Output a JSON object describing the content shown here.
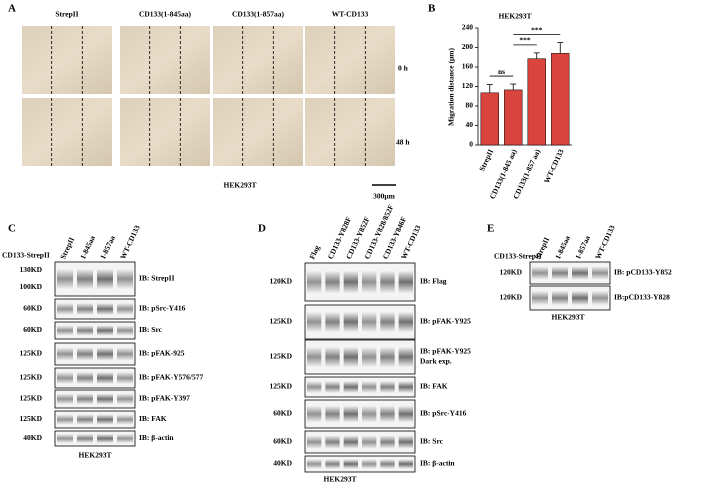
{
  "panels": {
    "a": {
      "label": "A",
      "columns": [
        "StrepII",
        "CD133(1-845aa)",
        "CD133(1-857aa)",
        "WT-CD133"
      ],
      "rows": [
        "0 h",
        "48 h"
      ],
      "cell_line": "HEK293T",
      "scale_bar": "300μm"
    },
    "c": {
      "label": "C",
      "construct": "CD133-StrepII",
      "lanes": [
        "StrepII",
        "1-845aa",
        "1-857aa",
        "WT-CD133"
      ],
      "blots": [
        {
          "markers": [
            "130KD",
            "100KD"
          ],
          "antibody": "IB: StrepII"
        },
        {
          "markers": [
            "60KD"
          ],
          "antibody": "IB: pSrc-Y416"
        },
        {
          "markers": [
            "60KD"
          ],
          "antibody": "IB: Src"
        },
        {
          "markers": [
            "125KD"
          ],
          "antibody": "IB: pFAK-925"
        },
        {
          "markers": [
            "125KD"
          ],
          "antibody": "IB: pFAK-Y576/577"
        },
        {
          "markers": [
            "125KD"
          ],
          "antibody": "IB: pFAK-Y397"
        },
        {
          "markers": [
            "125KD"
          ],
          "antibody": "IB: FAK"
        },
        {
          "markers": [
            "40KD"
          ],
          "antibody": "IB: β-actin"
        }
      ],
      "cell_line": "HEK293T"
    },
    "d": {
      "label": "D",
      "lanes": [
        "Flag",
        "CD133-Y828F",
        "CD133-Y852F",
        "CD133-Y828/852F",
        "CD133-Y846F",
        "WT-CD133"
      ],
      "blots": [
        {
          "markers": [
            "120KD"
          ],
          "antibody": "IB: Flag"
        },
        {
          "markers": [
            "125KD"
          ],
          "antibody": "IB: pFAK-Y925"
        },
        {
          "markers": [
            "125KD"
          ],
          "antibody": "IB: pFAK-Y925",
          "note": "Dark exp."
        },
        {
          "markers": [
            "125KD"
          ],
          "antibody": "IB: FAK"
        },
        {
          "markers": [
            "60KD"
          ],
          "antibody": "IB: pSrc-Y416"
        },
        {
          "markers": [
            "60KD"
          ],
          "antibody": "IB: Src"
        },
        {
          "markers": [
            "40KD"
          ],
          "antibody": "IB: β-actin"
        }
      ],
      "cell_line": "HEK293T"
    },
    "e": {
      "label": "E",
      "construct": "CD133-StrepII",
      "lanes": [
        "StrepII",
        "1-845aa",
        "1-857aa",
        "WT-CD133"
      ],
      "blots": [
        {
          "markers": [
            "120KD"
          ],
          "antibody": "IB: pCD133-Y852"
        },
        {
          "markers": [
            "120KD"
          ],
          "antibody": "IB:pCD133-Y828"
        }
      ],
      "cell_line": "HEK293T"
    }
  },
  "chart_data": {
    "type": "bar",
    "panel_label": "B",
    "title": "HEK293T",
    "y_label": "Migration distance (μm)",
    "categories": [
      "StrepII",
      "CD133(1-845 aa)",
      "CD133(1-857 aa)",
      "WT-CD133"
    ],
    "values": [
      107,
      113,
      177,
      188
    ],
    "errors": [
      17,
      12,
      12,
      22
    ],
    "color": "#d9443c",
    "ylim": [
      0,
      240
    ],
    "yticks": [
      0,
      40,
      80,
      120,
      160,
      200,
      240
    ],
    "significance": [
      {
        "between": [
          "StrepII",
          "CD133(1-845 aa)"
        ],
        "label": "ns"
      },
      {
        "between": [
          "CD133(1-845 aa)",
          "CD133(1-857 aa)"
        ],
        "label": "***"
      },
      {
        "between": [
          "CD133(1-845 aa)",
          "WT-CD133"
        ],
        "label": "***"
      }
    ]
  }
}
